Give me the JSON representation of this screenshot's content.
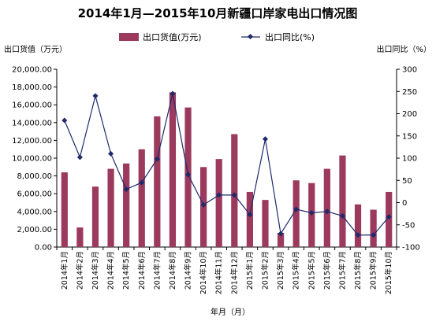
{
  "chart_data": {
    "type": "bar",
    "title": "2014年1月—2015年10月新疆口岸家电出口情况图",
    "xlabel": "年月（月）",
    "ylabel_left": "出口货值（万元）",
    "ylabel_right": "出口同比（%）",
    "categories": [
      "2014年1月",
      "2014年2月",
      "2014年3月",
      "2014年4月",
      "2014年5月",
      "2014年6月",
      "2014年7月",
      "2014年8月",
      "2014年9月",
      "2014年10月",
      "2014年11月",
      "2014年12月",
      "2015年1月",
      "2015年2月",
      "2015年3月",
      "2015年4月",
      "2015年5月",
      "2015年6月",
      "2015年7月",
      "2015年8月",
      "2015年9月",
      "2015年10月"
    ],
    "series": [
      {
        "name": "出口货值(万元)",
        "type": "bar",
        "axis": "left",
        "color": "#9c3a5e",
        "values": [
          8400,
          2200,
          6800,
          8800,
          9400,
          11000,
          14700,
          17400,
          15700,
          9000,
          9900,
          12700,
          6200,
          5300,
          1600,
          7500,
          7200,
          8800,
          10300,
          4800,
          4200,
          6200
        ]
      },
      {
        "name": "出口同比(%)",
        "type": "line",
        "axis": "right",
        "color": "#1f2a6b",
        "values": [
          185,
          102,
          240,
          110,
          30,
          45,
          98,
          245,
          63,
          -5,
          17,
          17,
          -27,
          143,
          -70,
          -15,
          -23,
          -20,
          -30,
          -73,
          -73,
          -32
        ]
      }
    ],
    "ylim_left": [
      0,
      20000
    ],
    "yticks_left": [
      "0.00",
      "2,000.00",
      "4,000.00",
      "6,000.00",
      "8,000.00",
      "10,000.00",
      "12,000.00",
      "14,000.00",
      "16,000.00",
      "18,000.00",
      "20,000.00"
    ],
    "ylim_right": [
      -100,
      300
    ],
    "yticks_right": [
      "-100",
      "-50",
      "0",
      "50",
      "100",
      "150",
      "200",
      "250",
      "300"
    ],
    "legend_position": "top"
  }
}
